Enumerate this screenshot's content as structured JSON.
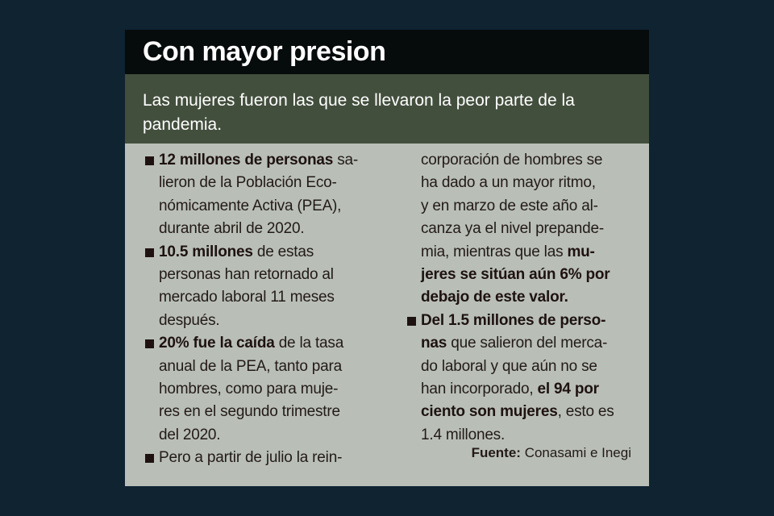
{
  "title": "Con mayor presion",
  "subtitle": "Las mujeres fueron las que se llevaron la peor parte de la pandemia.",
  "columns": [
    {
      "lines": [
        {
          "bullet": true,
          "segments": [
            {
              "text": "12 millones de personas",
              "bold": true
            },
            {
              "text": " sa-",
              "bold": false
            }
          ]
        },
        {
          "bullet": false,
          "segments": [
            {
              "text": "lieron de la Población Eco-",
              "bold": false
            }
          ]
        },
        {
          "bullet": false,
          "segments": [
            {
              "text": "nómicamente Activa (PEA),",
              "bold": false
            }
          ]
        },
        {
          "bullet": false,
          "segments": [
            {
              "text": "durante abril de 2020.",
              "bold": false
            }
          ]
        },
        {
          "bullet": true,
          "segments": [
            {
              "text": "10.5 millones",
              "bold": true
            },
            {
              "text": " de estas",
              "bold": false
            }
          ]
        },
        {
          "bullet": false,
          "segments": [
            {
              "text": "personas han retornado al",
              "bold": false
            }
          ]
        },
        {
          "bullet": false,
          "segments": [
            {
              "text": "mercado laboral 11 meses",
              "bold": false
            }
          ]
        },
        {
          "bullet": false,
          "segments": [
            {
              "text": "después.",
              "bold": false
            }
          ]
        },
        {
          "bullet": true,
          "segments": [
            {
              "text": "20% fue la caída",
              "bold": true
            },
            {
              "text": " de la tasa",
              "bold": false
            }
          ]
        },
        {
          "bullet": false,
          "segments": [
            {
              "text": "anual de la PEA, tanto para",
              "bold": false
            }
          ]
        },
        {
          "bullet": false,
          "segments": [
            {
              "text": "hombres, como para muje-",
              "bold": false
            }
          ]
        },
        {
          "bullet": false,
          "segments": [
            {
              "text": "res en el segundo trimestre",
              "bold": false
            }
          ]
        },
        {
          "bullet": false,
          "segments": [
            {
              "text": "del 2020.",
              "bold": false
            }
          ]
        },
        {
          "bullet": true,
          "segments": [
            {
              "text": "Pero a partir de julio la rein-",
              "bold": false
            }
          ]
        }
      ]
    },
    {
      "lines": [
        {
          "bullet": false,
          "segments": [
            {
              "text": "corporación de hombres se",
              "bold": false
            }
          ]
        },
        {
          "bullet": false,
          "segments": [
            {
              "text": "ha dado a un mayor ritmo,",
              "bold": false
            }
          ]
        },
        {
          "bullet": false,
          "segments": [
            {
              "text": "y en marzo de este año al-",
              "bold": false
            }
          ]
        },
        {
          "bullet": false,
          "segments": [
            {
              "text": "canza ya el nivel prepande-",
              "bold": false
            }
          ]
        },
        {
          "bullet": false,
          "segments": [
            {
              "text": "mia, mientras que las ",
              "bold": false
            },
            {
              "text": "mu-",
              "bold": true
            }
          ]
        },
        {
          "bullet": false,
          "segments": [
            {
              "text": "jeres se sitúan aún 6% por",
              "bold": true
            }
          ]
        },
        {
          "bullet": false,
          "segments": [
            {
              "text": "debajo de este valor.",
              "bold": true
            }
          ]
        },
        {
          "bullet": true,
          "segments": [
            {
              "text": "Del 1.5 millones de perso-",
              "bold": true
            }
          ]
        },
        {
          "bullet": false,
          "segments": [
            {
              "text": "nas",
              "bold": true
            },
            {
              "text": " que salieron del merca-",
              "bold": false
            }
          ]
        },
        {
          "bullet": false,
          "segments": [
            {
              "text": "do laboral y que aún no se",
              "bold": false
            }
          ]
        },
        {
          "bullet": false,
          "segments": [
            {
              "text": "han incorporado, ",
              "bold": false
            },
            {
              "text": "el 94 por",
              "bold": true
            }
          ]
        },
        {
          "bullet": false,
          "segments": [
            {
              "text": "ciento son mujeres",
              "bold": true
            },
            {
              "text": ", esto es",
              "bold": false
            }
          ]
        },
        {
          "bullet": false,
          "segments": [
            {
              "text": "1.4 millones.",
              "bold": false
            }
          ]
        }
      ]
    }
  ],
  "source": {
    "label": "Fuente:",
    "text": " Conasami e Inegi"
  },
  "colors": {
    "background": "#0f2331",
    "header": "#060b0c",
    "subtitle_band": "#434f3d",
    "body": "#b9bfb7"
  }
}
